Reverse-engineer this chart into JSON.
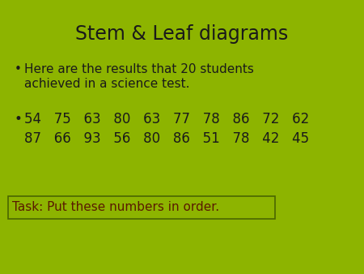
{
  "title": "Stem & Leaf diagrams",
  "bullet1_line1": "Here are the results that 20 students",
  "bullet1_line2": "achieved in a science test.",
  "numbers_row1": "54   75   63   80   63   77   78   86   72   62",
  "numbers_row2": "87   66   93   56   80   86   51   78   42   45",
  "task_full": "Task: Put these numbers in order.",
  "bg_color": "#8db400",
  "title_color": "#1a1a1a",
  "text_color": "#1a1a1a",
  "task_color": "#5a1a00",
  "box_edge_color": "#4a6600",
  "title_fontsize": 17,
  "body_fontsize": 11,
  "numbers_fontsize": 12,
  "task_fontsize": 11
}
